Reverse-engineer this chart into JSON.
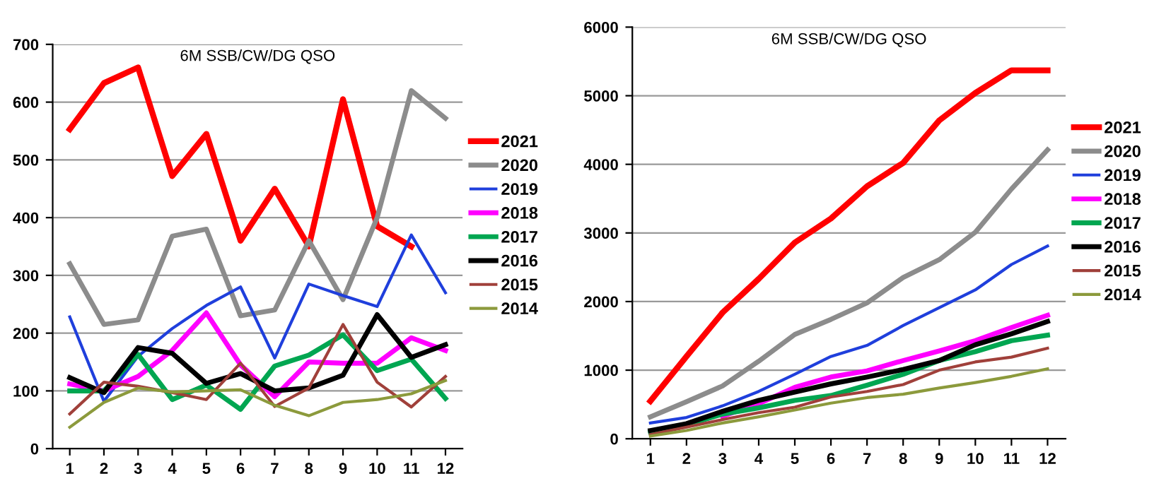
{
  "chart_data": [
    {
      "type": "line",
      "title": "6M SSB/CW/DG QSO",
      "categories": [
        "1",
        "2",
        "3",
        "4",
        "5",
        "6",
        "7",
        "8",
        "9",
        "10",
        "11",
        "12"
      ],
      "ylim": [
        0,
        700
      ],
      "yticks": [
        0,
        100,
        200,
        300,
        400,
        500,
        600,
        700
      ],
      "grid": "y",
      "legend": "right",
      "series": [
        {
          "name": "2021",
          "color": "#ff0000",
          "values": [
            553,
            633,
            660,
            472,
            545,
            360,
            450,
            350,
            605,
            385,
            350,
            null
          ]
        },
        {
          "name": "2020",
          "color": "#8c8c8c",
          "values": [
            320,
            215,
            223,
            368,
            380,
            230,
            240,
            360,
            258,
            400,
            620,
            572
          ]
        },
        {
          "name": "2019",
          "color": "#1f3fdc",
          "values": [
            228,
            82,
            160,
            208,
            248,
            280,
            157,
            285,
            265,
            246,
            370,
            270
          ]
        },
        {
          "name": "2018",
          "color": "#ff00ff",
          "values": [
            112,
            100,
            125,
            170,
            235,
            145,
            90,
            150,
            148,
            148,
            192,
            170
          ]
        },
        {
          "name": "2017",
          "color": "#00a651",
          "values": [
            100,
            100,
            163,
            85,
            110,
            68,
            143,
            162,
            197,
            135,
            155,
            87
          ]
        },
        {
          "name": "2016",
          "color": "#000000",
          "values": [
            123,
            97,
            175,
            165,
            113,
            130,
            100,
            105,
            127,
            232,
            158,
            180
          ]
        },
        {
          "name": "2015",
          "color": "#a0403a",
          "values": [
            60,
            115,
            108,
            97,
            85,
            148,
            73,
            105,
            215,
            115,
            72,
            125
          ]
        },
        {
          "name": "2014",
          "color": "#8c9a3c",
          "values": [
            37,
            80,
            105,
            98,
            100,
            102,
            75,
            57,
            80,
            85,
            95,
            118
          ]
        }
      ]
    },
    {
      "type": "line",
      "title": "6M SSB/CW/DG QSO",
      "categories": [
        "1",
        "2",
        "3",
        "4",
        "5",
        "6",
        "7",
        "8",
        "9",
        "10",
        "11",
        "12"
      ],
      "ylim": [
        0,
        6000
      ],
      "yticks": [
        0,
        1000,
        2000,
        3000,
        4000,
        5000,
        6000
      ],
      "grid": "y",
      "legend": "right",
      "series": [
        {
          "name": "2021",
          "color": "#ff0000",
          "values": [
            550,
            1200,
            1840,
            2330,
            2860,
            3210,
            3680,
            4020,
            4640,
            5040,
            5370,
            5370
          ]
        },
        {
          "name": "2020",
          "color": "#8c8c8c",
          "values": [
            320,
            540,
            770,
            1130,
            1520,
            1740,
            1980,
            2350,
            2610,
            3010,
            3640,
            4210
          ]
        },
        {
          "name": "2019",
          "color": "#1f3fdc",
          "values": [
            230,
            310,
            480,
            690,
            940,
            1200,
            1360,
            1650,
            1910,
            2170,
            2540,
            2810
          ]
        },
        {
          "name": "2018",
          "color": "#ff00ff",
          "values": [
            null,
            null,
            330,
            510,
            750,
            900,
            990,
            1140,
            1280,
            1430,
            1620,
            1800
          ]
        },
        {
          "name": "2017",
          "color": "#00a651",
          "values": [
            100,
            200,
            360,
            450,
            560,
            630,
            780,
            940,
            1140,
            1270,
            1430,
            1510
          ]
        },
        {
          "name": "2016",
          "color": "#000000",
          "values": [
            120,
            220,
            400,
            560,
            680,
            800,
            900,
            1010,
            1140,
            1370,
            1530,
            1710
          ]
        },
        {
          "name": "2015",
          "color": "#a0403a",
          "values": [
            60,
            170,
            280,
            380,
            460,
            610,
            690,
            790,
            1000,
            1120,
            1190,
            1320
          ]
        },
        {
          "name": "2014",
          "color": "#8c9a3c",
          "values": [
            40,
            120,
            230,
            320,
            420,
            520,
            600,
            650,
            740,
            820,
            910,
            1020
          ]
        }
      ]
    }
  ]
}
